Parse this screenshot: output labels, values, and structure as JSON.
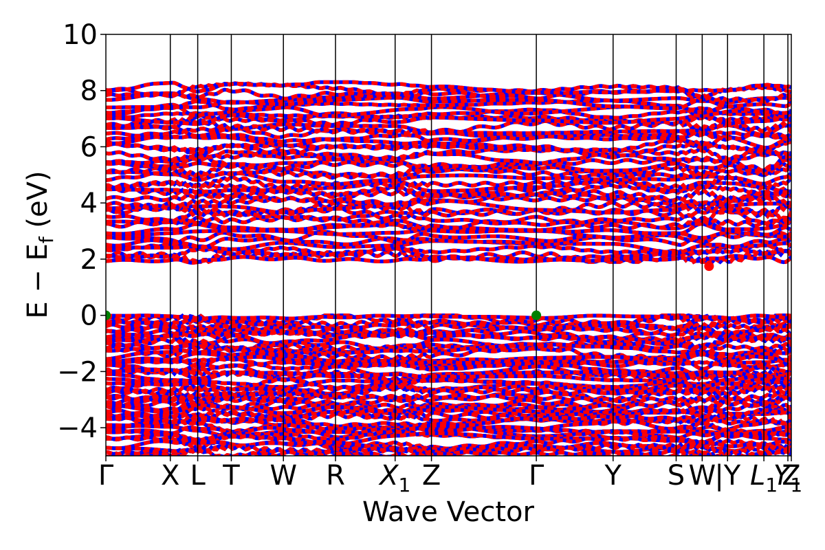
{
  "chart_data": {
    "type": "line",
    "title": "",
    "xlabel": "Wave Vector",
    "ylabel": "E − E_f (eV)",
    "ylabel_parts": {
      "main": "E − E",
      "sub": "f",
      "unit": " (eV)"
    },
    "ylim": [
      -5,
      10
    ],
    "y_ticks": [
      10,
      8,
      6,
      4,
      2,
      0,
      -2,
      -4
    ],
    "y_tick_labels": [
      "10",
      "8",
      "6",
      "4",
      "2",
      "0",
      "−2",
      "−4"
    ],
    "xlim": [
      0,
      1
    ],
    "high_symmetry_points": [
      {
        "label": "Γ",
        "sub": "",
        "x": 0.0
      },
      {
        "label": "X",
        "sub": "",
        "x": 0.094
      },
      {
        "label": "L",
        "sub": "",
        "x": 0.134
      },
      {
        "label": "T",
        "sub": "",
        "x": 0.183
      },
      {
        "label": "W",
        "sub": "",
        "x": 0.259
      },
      {
        "label": "R",
        "sub": "",
        "x": 0.335
      },
      {
        "label": "X",
        "sub": "1",
        "x": 0.422
      },
      {
        "label": "Z",
        "sub": "",
        "x": 0.475
      },
      {
        "label": "Γ",
        "sub": "",
        "x": 0.628
      },
      {
        "label": "Y",
        "sub": "",
        "x": 0.74
      },
      {
        "label": "S",
        "sub": "",
        "x": 0.832
      },
      {
        "label": "W",
        "sub": "",
        "x": 0.87
      },
      {
        "label": "|Y",
        "sub": "",
        "x": 0.907
      },
      {
        "label": "L",
        "sub": "1",
        "x": 0.96
      },
      {
        "label": "Y",
        "sub": "1",
        "x": 0.995
      },
      {
        "label": "Z",
        "sub": "",
        "x": 1.0
      }
    ],
    "band_regions": {
      "valence": {
        "top": 0.0,
        "bottom": -5.0
      },
      "conduction": {
        "bottom": 1.9,
        "top": 8.3
      }
    },
    "series": [
      {
        "color": "#ff0000"
      },
      {
        "color": "#0000ff"
      }
    ],
    "markers": [
      {
        "name": "VBM",
        "x": 0.0,
        "y": 0.0,
        "color": "#008000"
      },
      {
        "name": "VBM",
        "x": 0.628,
        "y": 0.0,
        "color": "#008000"
      },
      {
        "name": "CBM",
        "x": 0.88,
        "y": 1.75,
        "color": "#ff0000"
      }
    ],
    "grid": false,
    "legend": "none"
  }
}
